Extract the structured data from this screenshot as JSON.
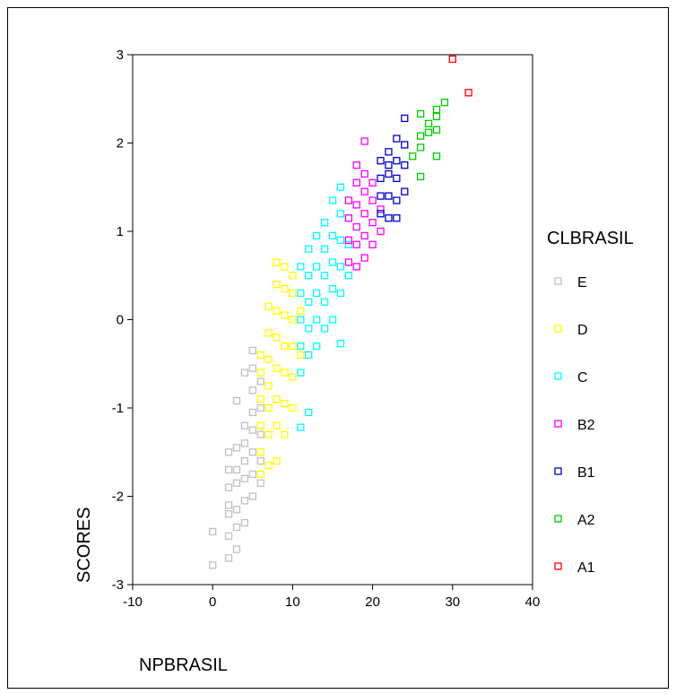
{
  "chart_data": {
    "type": "scatter",
    "xlabel": "NPBRASIL",
    "ylabel": "SCORES",
    "xlim": [
      -10,
      40
    ],
    "ylim": [
      -3,
      3
    ],
    "xticks": [
      "-10",
      "0",
      "10",
      "20",
      "30",
      "40"
    ],
    "yticks": [
      "-3",
      "-2",
      "-1",
      "0",
      "1",
      "2",
      "3"
    ],
    "grid": false,
    "legend_title": "CLBRASIL",
    "legend_position": "right",
    "marker": "hollow-square",
    "series": [
      {
        "name": "E",
        "color": "#c0c0c0",
        "points": [
          [
            0,
            -2.78
          ],
          [
            0,
            -2.4
          ],
          [
            2,
            -2.7
          ],
          [
            2,
            -2.45
          ],
          [
            2,
            -2.2
          ],
          [
            2,
            -2.1
          ],
          [
            2,
            -1.9
          ],
          [
            2,
            -1.7
          ],
          [
            2,
            -1.5
          ],
          [
            3,
            -2.6
          ],
          [
            3,
            -2.35
          ],
          [
            3,
            -2.15
          ],
          [
            3,
            -1.85
          ],
          [
            3,
            -1.7
          ],
          [
            3,
            -1.45
          ],
          [
            3,
            -0.92
          ],
          [
            4,
            -2.3
          ],
          [
            4,
            -2.05
          ],
          [
            4,
            -1.8
          ],
          [
            4,
            -1.6
          ],
          [
            4,
            -1.4
          ],
          [
            4,
            -1.2
          ],
          [
            4,
            -0.6
          ],
          [
            5,
            -2.0
          ],
          [
            5,
            -1.75
          ],
          [
            5,
            -1.5
          ],
          [
            5,
            -1.25
          ],
          [
            5,
            -1.05
          ],
          [
            5,
            -0.8
          ],
          [
            5,
            -0.55
          ],
          [
            5,
            -0.35
          ],
          [
            6,
            -1.85
          ],
          [
            6,
            -1.6
          ],
          [
            6,
            -1.3
          ],
          [
            6,
            -1.0
          ],
          [
            6,
            -0.7
          ]
        ]
      },
      {
        "name": "D",
        "color": "#ffff00",
        "points": [
          [
            6,
            -1.75
          ],
          [
            6,
            -1.5
          ],
          [
            6,
            -1.2
          ],
          [
            6,
            -0.9
          ],
          [
            6,
            -0.6
          ],
          [
            6,
            -0.4
          ],
          [
            7,
            -1.65
          ],
          [
            7,
            -1.3
          ],
          [
            7,
            -1.0
          ],
          [
            7,
            -0.75
          ],
          [
            7,
            -0.45
          ],
          [
            7,
            -0.15
          ],
          [
            7,
            0.15
          ],
          [
            8,
            -1.6
          ],
          [
            8,
            -1.2
          ],
          [
            8,
            -0.9
          ],
          [
            8,
            -0.55
          ],
          [
            8,
            -0.2
          ],
          [
            8,
            0.1
          ],
          [
            8,
            0.4
          ],
          [
            8,
            0.65
          ],
          [
            9,
            -1.3
          ],
          [
            9,
            -0.95
          ],
          [
            9,
            -0.6
          ],
          [
            9,
            -0.3
          ],
          [
            9,
            0.05
          ],
          [
            9,
            0.35
          ],
          [
            9,
            0.6
          ],
          [
            10,
            -1.0
          ],
          [
            10,
            -0.65
          ],
          [
            10,
            -0.3
          ],
          [
            10,
            0.0
          ],
          [
            10,
            0.3
          ],
          [
            10,
            0.5
          ],
          [
            11,
            -0.4
          ],
          [
            11,
            0.1
          ]
        ]
      },
      {
        "name": "C",
        "color": "#00ffff",
        "points": [
          [
            11,
            -0.6
          ],
          [
            11,
            -0.3
          ],
          [
            11,
            0.0
          ],
          [
            11,
            0.3
          ],
          [
            11,
            0.6
          ],
          [
            11,
            -1.22
          ],
          [
            12,
            -1.05
          ],
          [
            12,
            -0.4
          ],
          [
            12,
            -0.1
          ],
          [
            12,
            0.2
          ],
          [
            12,
            0.5
          ],
          [
            12,
            0.8
          ],
          [
            13,
            -0.3
          ],
          [
            13,
            0.0
          ],
          [
            13,
            0.3
          ],
          [
            13,
            0.6
          ],
          [
            13,
            0.95
          ],
          [
            14,
            -0.1
          ],
          [
            14,
            0.2
          ],
          [
            14,
            0.5
          ],
          [
            14,
            0.8
          ],
          [
            14,
            1.1
          ],
          [
            15,
            0.0
          ],
          [
            15,
            0.35
          ],
          [
            15,
            0.65
          ],
          [
            15,
            0.95
          ],
          [
            15,
            1.35
          ],
          [
            16,
            -0.27
          ],
          [
            16,
            0.3
          ],
          [
            16,
            0.6
          ],
          [
            16,
            0.9
          ],
          [
            16,
            1.2
          ],
          [
            16,
            1.5
          ],
          [
            17,
            0.5
          ],
          [
            17,
            0.85
          ],
          [
            17,
            1.15
          ]
        ]
      },
      {
        "name": "B2",
        "color": "#ff00ff",
        "points": [
          [
            17,
            0.65
          ],
          [
            17,
            0.9
          ],
          [
            17,
            1.15
          ],
          [
            17,
            1.35
          ],
          [
            18,
            0.6
          ],
          [
            18,
            0.85
          ],
          [
            18,
            1.05
          ],
          [
            18,
            1.3
          ],
          [
            18,
            1.55
          ],
          [
            18,
            1.75
          ],
          [
            19,
            0.7
          ],
          [
            19,
            0.95
          ],
          [
            19,
            1.2
          ],
          [
            19,
            1.45
          ],
          [
            19,
            1.65
          ],
          [
            19,
            2.02
          ],
          [
            20,
            0.85
          ],
          [
            20,
            1.1
          ],
          [
            20,
            1.35
          ],
          [
            20,
            1.55
          ],
          [
            21,
            1.0
          ],
          [
            21,
            1.25
          ]
        ]
      },
      {
        "name": "B1",
        "color": "#0000cc",
        "points": [
          [
            21,
            1.4
          ],
          [
            21,
            1.6
          ],
          [
            21,
            1.8
          ],
          [
            22,
            1.15
          ],
          [
            22,
            1.4
          ],
          [
            22,
            1.65
          ],
          [
            22,
            1.9
          ],
          [
            23,
            1.35
          ],
          [
            23,
            1.6
          ],
          [
            23,
            1.8
          ],
          [
            23,
            2.05
          ],
          [
            24,
            1.45
          ],
          [
            24,
            1.75
          ],
          [
            24,
            1.98
          ],
          [
            24,
            2.28
          ],
          [
            21,
            1.2
          ],
          [
            22,
            1.75
          ],
          [
            23,
            1.15
          ]
        ]
      },
      {
        "name": "A2",
        "color": "#00cc00",
        "points": [
          [
            25,
            1.85
          ],
          [
            26,
            1.62
          ],
          [
            26,
            1.95
          ],
          [
            26,
            2.08
          ],
          [
            26,
            2.33
          ],
          [
            27,
            2.12
          ],
          [
            27,
            2.22
          ],
          [
            28,
            1.85
          ],
          [
            28,
            2.15
          ],
          [
            28,
            2.3
          ],
          [
            28,
            2.38
          ],
          [
            29,
            2.46
          ]
        ]
      },
      {
        "name": "A1",
        "color": "#ff0000",
        "points": [
          [
            30,
            2.95
          ],
          [
            32,
            2.57
          ]
        ]
      }
    ]
  }
}
